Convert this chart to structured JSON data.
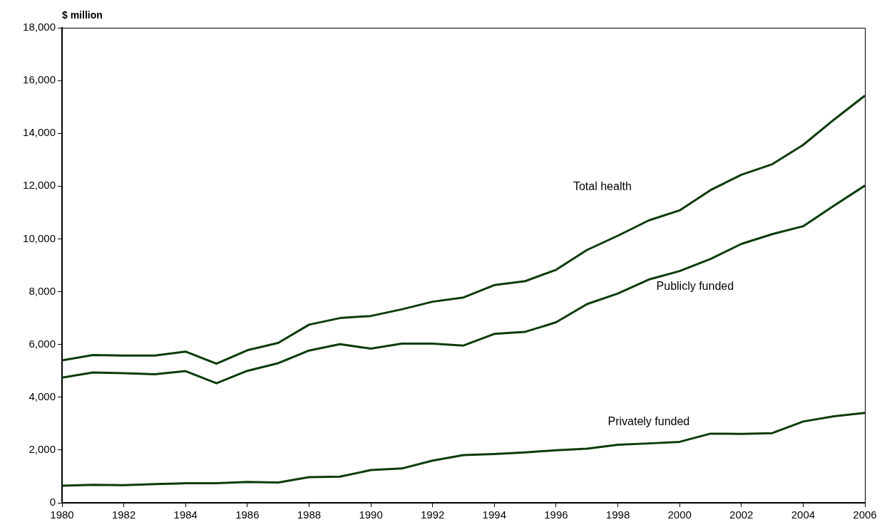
{
  "chart_data": {
    "type": "line",
    "ylabel": "$ million",
    "x": [
      1980,
      1981,
      1982,
      1983,
      1984,
      1985,
      1986,
      1987,
      1988,
      1989,
      1990,
      1991,
      1992,
      1993,
      1994,
      1995,
      1996,
      1997,
      1998,
      1999,
      2000,
      2001,
      2002,
      2003,
      2004,
      2005,
      2006
    ],
    "series": [
      {
        "name": "Total health",
        "color": "#0b3b0b",
        "values": [
          5400,
          5600,
          5580,
          5580,
          5730,
          5270,
          5780,
          6060,
          6750,
          7000,
          7080,
          7330,
          7620,
          7780,
          8250,
          8400,
          8830,
          9580,
          10120,
          10700,
          11080,
          11850,
          12430,
          12830,
          13560,
          14520,
          15430
        ]
      },
      {
        "name": "Publicly funded",
        "color": "#0b3b0b",
        "values": [
          4740,
          4940,
          4910,
          4870,
          4990,
          4530,
          5000,
          5290,
          5770,
          6010,
          5840,
          6030,
          6030,
          5960,
          6400,
          6480,
          6840,
          7530,
          7930,
          8460,
          8780,
          9240,
          9810,
          10180,
          10480,
          11260,
          12020
        ]
      },
      {
        "name": "Privately funded",
        "color": "#0b3b0b",
        "values": [
          650,
          680,
          670,
          710,
          740,
          740,
          790,
          770,
          970,
          990,
          1240,
          1300,
          1600,
          1810,
          1850,
          1910,
          1990,
          2050,
          2200,
          2250,
          2310,
          2620,
          2610,
          2640,
          3080,
          3280,
          3410
        ]
      }
    ],
    "xlim": [
      1980,
      2006
    ],
    "xticks": [
      1980,
      1982,
      1984,
      1986,
      1988,
      1990,
      1992,
      1994,
      1996,
      1998,
      2000,
      2002,
      2004,
      2006
    ],
    "ylim": [
      0,
      18000
    ],
    "yticks": [
      0,
      {
        "value": 2000,
        "label": "2,000"
      },
      {
        "value": 4000,
        "label": "4,000"
      },
      {
        "value": 6000,
        "label": "6,000"
      },
      {
        "value": 8000,
        "label": "8,000"
      },
      {
        "value": 10000,
        "label": "10,000"
      },
      {
        "value": 12000,
        "label": "12,000"
      },
      {
        "value": 14000,
        "label": "14,000"
      },
      {
        "value": 16000,
        "label": "16,000"
      },
      {
        "value": 18000,
        "label": "18,000"
      }
    ],
    "grid": false,
    "legend": false,
    "marker": "none",
    "line_style": "solid"
  }
}
